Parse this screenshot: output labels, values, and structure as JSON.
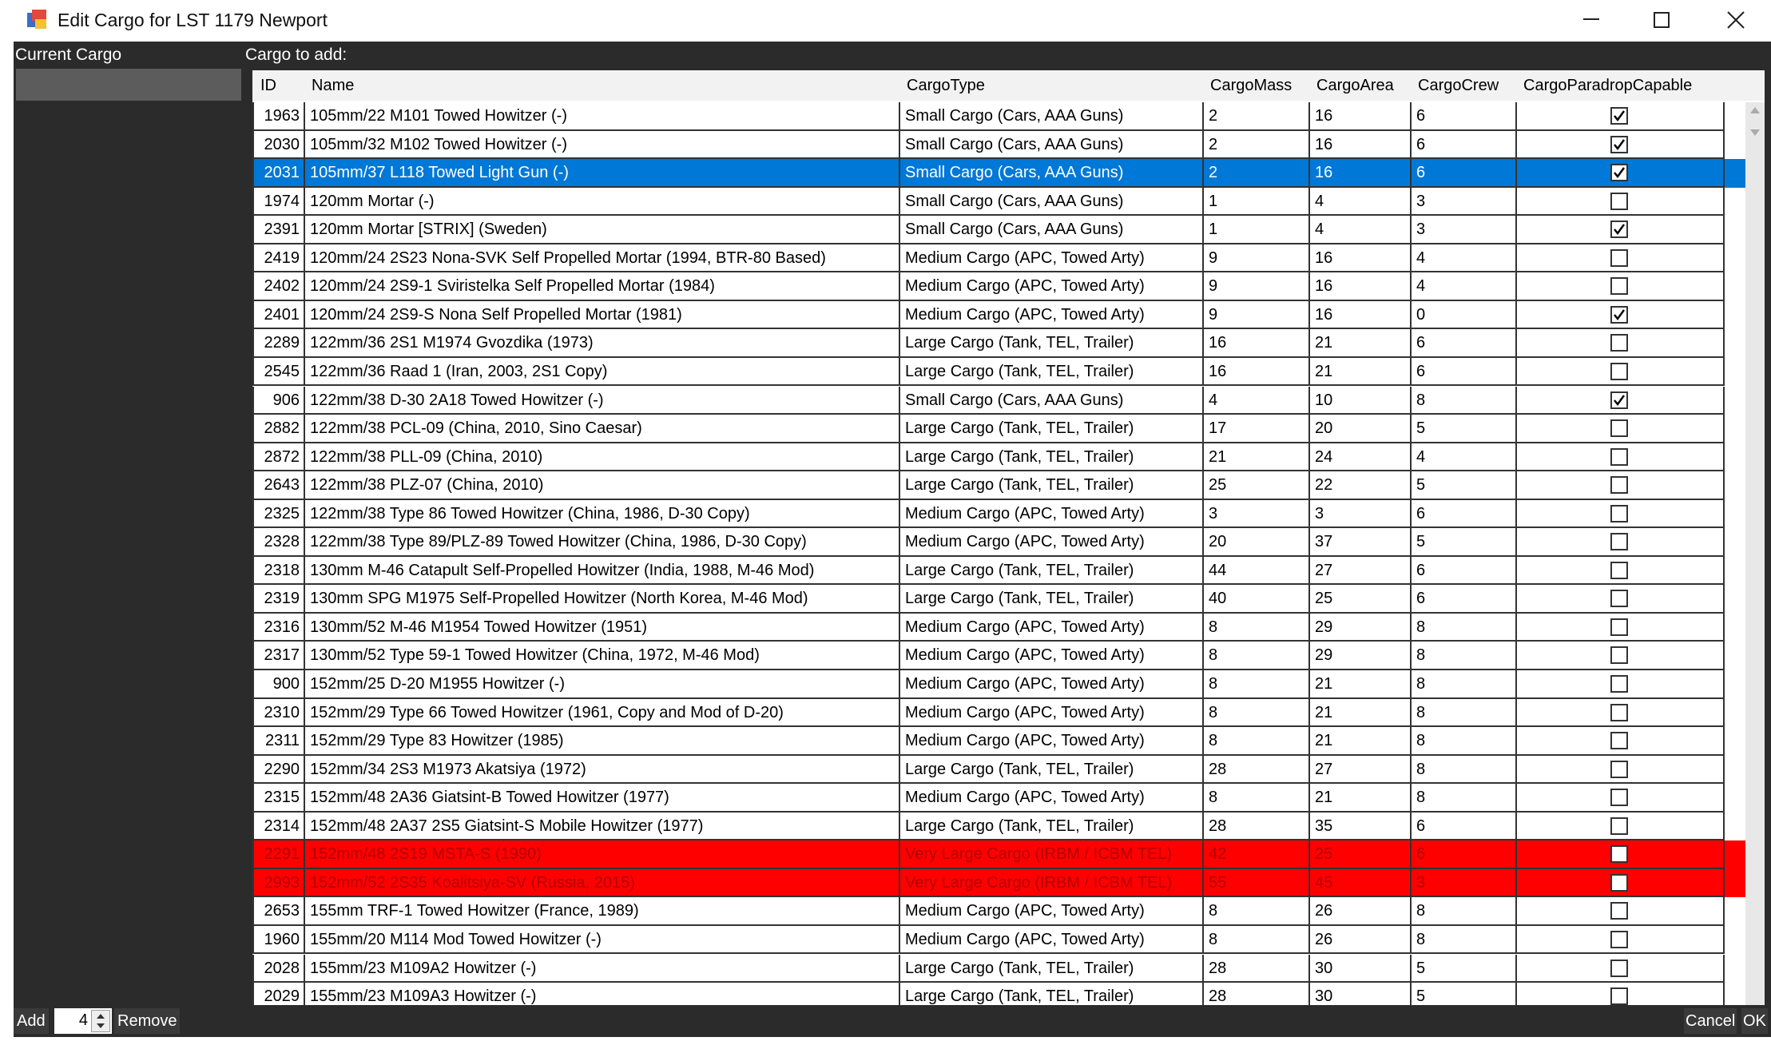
{
  "window": {
    "title": "Edit Cargo for LST 1179 Newport"
  },
  "left_panel": {
    "label": "Current Cargo"
  },
  "right_panel": {
    "label": "Cargo to add:"
  },
  "table": {
    "columns": [
      "ID",
      "Name",
      "CargoType",
      "CargoMass",
      "CargoArea",
      "CargoCrew",
      "CargoParadropCapable"
    ],
    "selected_row": 2,
    "red_rows": [
      26,
      27
    ],
    "rows": [
      [
        1963,
        "105mm/22 M101 Towed Howitzer (-)",
        "Small Cargo (Cars, AAA Guns)",
        2,
        16,
        6,
        true
      ],
      [
        2030,
        "105mm/32 M102 Towed Howitzer (-)",
        "Small Cargo (Cars, AAA Guns)",
        2,
        16,
        6,
        true
      ],
      [
        2031,
        "105mm/37 L118 Towed Light Gun (-)",
        "Small Cargo (Cars, AAA Guns)",
        2,
        16,
        6,
        true
      ],
      [
        1974,
        "120mm Mortar (-)",
        "Small Cargo (Cars, AAA Guns)",
        1,
        4,
        3,
        false
      ],
      [
        2391,
        "120mm Mortar [STRIX] (Sweden)",
        "Small Cargo (Cars, AAA Guns)",
        1,
        4,
        3,
        true
      ],
      [
        2419,
        "120mm/24 2S23 Nona-SVK Self Propelled Mortar (1994, BTR-80 Based)",
        "Medium Cargo (APC, Towed Arty)",
        9,
        16,
        4,
        false
      ],
      [
        2402,
        "120mm/24 2S9-1 Sviristelka Self Propelled Mortar (1984)",
        "Medium Cargo (APC, Towed Arty)",
        9,
        16,
        4,
        false
      ],
      [
        2401,
        "120mm/24 2S9-S Nona Self Propelled Mortar (1981)",
        "Medium Cargo (APC, Towed Arty)",
        9,
        16,
        0,
        true
      ],
      [
        2289,
        "122mm/36 2S1 M1974 Gvozdika (1973)",
        "Large Cargo (Tank, TEL, Trailer)",
        16,
        21,
        6,
        false
      ],
      [
        2545,
        "122mm/36 Raad 1 (Iran, 2003, 2S1 Copy)",
        "Large Cargo (Tank, TEL, Trailer)",
        16,
        21,
        6,
        false
      ],
      [
        906,
        "122mm/38 D-30 2A18 Towed Howitzer (-)",
        "Small Cargo (Cars, AAA Guns)",
        4,
        10,
        8,
        true
      ],
      [
        2882,
        "122mm/38 PCL-09 (China, 2010, Sino Caesar)",
        "Large Cargo (Tank, TEL, Trailer)",
        17,
        20,
        5,
        false
      ],
      [
        2872,
        "122mm/38 PLL-09 (China, 2010)",
        "Large Cargo (Tank, TEL, Trailer)",
        21,
        24,
        4,
        false
      ],
      [
        2643,
        "122mm/38 PLZ-07 (China, 2010)",
        "Large Cargo (Tank, TEL, Trailer)",
        25,
        22,
        5,
        false
      ],
      [
        2325,
        "122mm/38 Type 86 Towed Howitzer (China, 1986, D-30 Copy)",
        "Medium Cargo (APC, Towed Arty)",
        3,
        3,
        6,
        false
      ],
      [
        2328,
        "122mm/38 Type 89/PLZ-89 Towed Howitzer (China, 1986, D-30 Copy)",
        "Medium Cargo (APC, Towed Arty)",
        20,
        37,
        5,
        false
      ],
      [
        2318,
        "130mm M-46 Catapult Self-Propelled Howitzer (India, 1988, M-46 Mod)",
        "Large Cargo (Tank, TEL, Trailer)",
        44,
        27,
        6,
        false
      ],
      [
        2319,
        "130mm SPG M1975 Self-Propelled Howitzer (North Korea, M-46 Mod)",
        "Large Cargo (Tank, TEL, Trailer)",
        40,
        25,
        6,
        false
      ],
      [
        2316,
        "130mm/52 M-46 M1954 Towed Howitzer (1951)",
        "Medium Cargo (APC, Towed Arty)",
        8,
        29,
        8,
        false
      ],
      [
        2317,
        "130mm/52 Type 59-1 Towed Howitzer (China, 1972, M-46 Mod)",
        "Medium Cargo (APC, Towed Arty)",
        8,
        29,
        8,
        false
      ],
      [
        900,
        "152mm/25 D-20 M1955 Howitzer (-)",
        "Medium Cargo (APC, Towed Arty)",
        8,
        21,
        8,
        false
      ],
      [
        2310,
        "152mm/29 Type 66 Towed Howitzer (1961, Copy and Mod of D-20)",
        "Medium Cargo (APC, Towed Arty)",
        8,
        21,
        8,
        false
      ],
      [
        2311,
        "152mm/29 Type 83 Howitzer (1985)",
        "Medium Cargo (APC, Towed Arty)",
        8,
        21,
        8,
        false
      ],
      [
        2290,
        "152mm/34 2S3 M1973 Akatsiya (1972)",
        "Large Cargo (Tank, TEL, Trailer)",
        28,
        27,
        8,
        false
      ],
      [
        2315,
        "152mm/48 2A36 Giatsint-B Towed Howitzer (1977)",
        "Medium Cargo (APC, Towed Arty)",
        8,
        21,
        8,
        false
      ],
      [
        2314,
        "152mm/48 2A37 2S5 Giatsint-S Mobile Howitzer (1977)",
        "Large Cargo (Tank, TEL, Trailer)",
        28,
        35,
        6,
        false
      ],
      [
        2291,
        "152mm/48 2S19 MSTA-S (1990)",
        "Very Large Cargo (IRBM / ICBM TEL)",
        42,
        25,
        6,
        false
      ],
      [
        2993,
        "152mm/52 2S35 Koalitsiya-SV (Russia, 2015)",
        "Very Large Cargo (IRBM / ICBM TEL)",
        55,
        45,
        3,
        false
      ],
      [
        2653,
        "155mm TRF-1 Towed Howitzer (France, 1989)",
        "Medium Cargo (APC, Towed Arty)",
        8,
        26,
        8,
        false
      ],
      [
        1960,
        "155mm/20 M114 Mod Towed Howitzer (-)",
        "Medium Cargo (APC, Towed Arty)",
        8,
        26,
        8,
        false
      ],
      [
        2028,
        "155mm/23 M109A2 Howitzer (-)",
        "Large Cargo (Tank, TEL, Trailer)",
        28,
        30,
        5,
        false
      ],
      [
        2029,
        "155mm/23 M109A3 Howitzer (-)",
        "Large Cargo (Tank, TEL, Trailer)",
        28,
        30,
        5,
        false
      ]
    ]
  },
  "footer": {
    "add": "Add",
    "quantity": 4,
    "remove": "Remove",
    "cancel": "Cancel",
    "ok": "OK"
  }
}
